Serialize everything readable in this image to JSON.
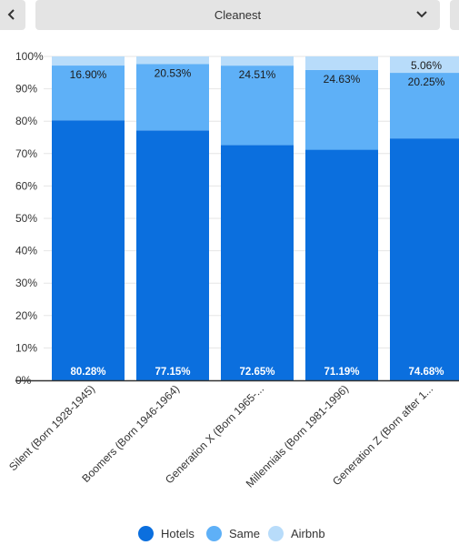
{
  "controls": {
    "prev_icon": "chevron-left-icon",
    "dropdown_value": "Cleanest",
    "dropdown_icon": "chevron-down-icon"
  },
  "colors": {
    "hotels": "#0b6fde",
    "same": "#5eb0f7",
    "airbnb": "#b8dcfa"
  },
  "chart_data": {
    "type": "bar",
    "stacked": true,
    "title": "",
    "xlabel": "",
    "ylabel": "",
    "ylim": [
      0,
      100
    ],
    "ytick_labels": [
      "0%",
      "10%",
      "20%",
      "30%",
      "40%",
      "50%",
      "60%",
      "70%",
      "80%",
      "90%",
      "100%"
    ],
    "grid": true,
    "legend_position": "bottom",
    "categories": [
      "Silent (Born 1928-1945)",
      "Boomers (Born 1946-1964)",
      "Generation X (Born 1965-...",
      "Millennials (Born 1981-1996)",
      "Generation Z (Born after 1..."
    ],
    "series": [
      {
        "name": "Hotels",
        "values": [
          80.28,
          77.15,
          72.65,
          71.19,
          74.68
        ],
        "labels": [
          "80.28%",
          "77.15%",
          "72.65%",
          "71.19%",
          "74.68%"
        ]
      },
      {
        "name": "Same",
        "values": [
          16.9,
          20.53,
          24.51,
          24.63,
          20.25
        ],
        "labels": [
          "16.90%",
          "20.53%",
          "24.51%",
          "24.63%",
          "20.25%"
        ]
      },
      {
        "name": "Airbnb",
        "values": [
          2.82,
          2.32,
          2.84,
          4.18,
          5.06
        ],
        "labels": [
          "",
          "",
          "",
          "",
          "5.06%"
        ]
      }
    ]
  }
}
